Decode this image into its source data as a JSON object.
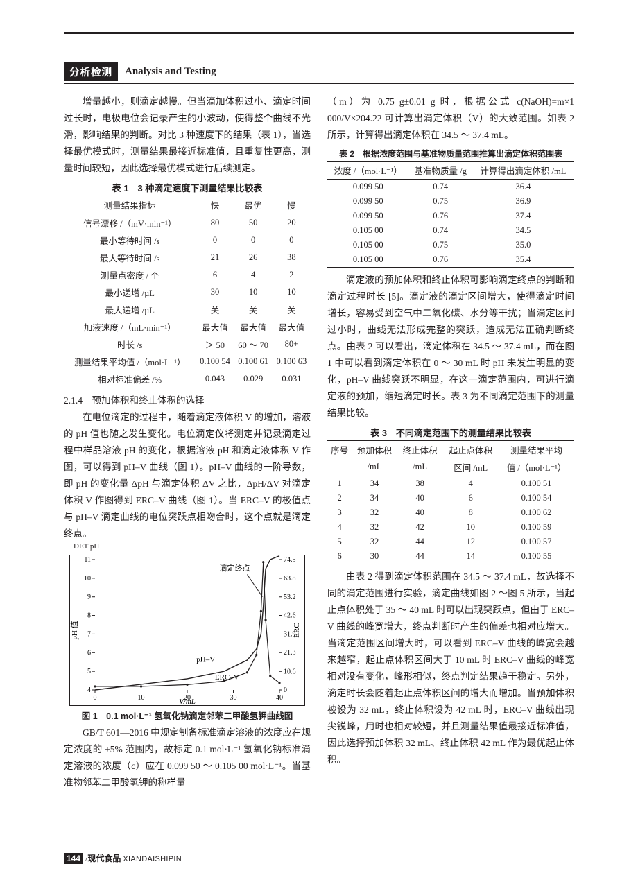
{
  "header": {
    "tag_zh": "分析检测",
    "tag_en": "Analysis and Testing"
  },
  "left": {
    "p1": "增量越小，则滴定越慢。但当滴加体积过小、滴定时间过长时，电极电位会记录产生的小波动，使得整个曲线不光滑，影响结果的判断。对比 3 种速度下的结果（表 1），当选择最优模式时，测量结果最接近标准值，且重复性更高，测量时间较短，因此选择最优模式进行后续测定。",
    "table1": {
      "title": "表 1　3 种滴定速度下测量结果比较表",
      "headers": [
        "测量结果指标",
        "快",
        "最优",
        "慢"
      ],
      "rows": [
        [
          "信号漂移 /（mV·min⁻¹）",
          "80",
          "50",
          "20"
        ],
        [
          "最小等待时间 /s",
          "0",
          "0",
          "0"
        ],
        [
          "最大等待时间 /s",
          "21",
          "26",
          "38"
        ],
        [
          "测量点密度 / 个",
          "6",
          "4",
          "2"
        ],
        [
          "最小递增 /µL",
          "30",
          "10",
          "10"
        ],
        [
          "最大递增 /µL",
          "关",
          "关",
          "关"
        ],
        [
          "加液速度 /（mL·min⁻¹）",
          "最大值",
          "最大值",
          "最大值"
        ],
        [
          "时长 /s",
          "＞ 50",
          "60 ～ 70",
          "80+"
        ],
        [
          "测量结果平均值 /（mol·L⁻¹）",
          "0.100 54",
          "0.100 61",
          "0.100 63"
        ],
        [
          "相对标准偏差 /%",
          "0.043",
          "0.029",
          "0.031"
        ]
      ]
    },
    "sec_214": "2.1.4　预加体积和终止体积的选择",
    "p2a": "在电位滴定的过程中，随着滴定液体积 V 的增加，溶液的 pH 值也随之发生变化。电位滴定仪将测定并记录滴定过程中样品溶液 pH 的变化，根据溶液 pH 和滴定液体积 V 作图，可以得到 pH–V 曲线（图 1）。pH–V 曲线的一阶导数，即 pH 的变化量 ΔpH 与滴定体积 ΔV 之比，ΔpH/ΔV 对滴定体积 V 作图得到 ERC–V 曲线（图 1）。当 ERC–V 的极值点与 pH–V 滴定曲线的电位突跃点相吻合时，这个点就是滴定终点。",
    "fig1": {
      "title_top": "DET pH",
      "y_left_label": "pH 值",
      "y_right_label": "ERC",
      "x_label": "V/mL",
      "x_ticks": [
        "0",
        "10",
        "20",
        "30",
        "40"
      ],
      "y_left_ticks": [
        "11",
        "10",
        "9",
        "8",
        "7",
        "6",
        "5",
        "4"
      ],
      "y_right_ticks": [
        "74.5",
        "63.8",
        "53.2",
        "42.6",
        "31.9",
        "21.3",
        "10.6",
        "0"
      ],
      "label_phv": "pH–V",
      "label_ercv": "ERC–V",
      "label_endpoint": "滴定终点",
      "ph_points": [
        [
          0,
          4.0
        ],
        [
          10,
          4.3
        ],
        [
          20,
          4.6
        ],
        [
          28,
          5.0
        ],
        [
          33,
          5.6
        ],
        [
          35,
          6.2
        ],
        [
          36,
          7.0
        ],
        [
          36.5,
          8.5
        ],
        [
          37,
          10.5
        ],
        [
          38,
          11.0
        ],
        [
          40,
          11.2
        ]
      ],
      "erc_points": [
        [
          0,
          2
        ],
        [
          10,
          2
        ],
        [
          20,
          3
        ],
        [
          28,
          5
        ],
        [
          33,
          10
        ],
        [
          35,
          20
        ],
        [
          36,
          45
        ],
        [
          36.5,
          73
        ],
        [
          37,
          40
        ],
        [
          38,
          8
        ],
        [
          40,
          4
        ]
      ],
      "line_color": "#231f20",
      "bg": "#ffffff",
      "caption": "图 1　0.1 mol·L⁻¹ 氢氧化钠滴定邻苯二甲酸氢钾曲线图"
    },
    "p3": "GB/T 601—2016 中规定制备标准滴定溶液的浓度应在规定浓度的 ±5% 范围内，故标定 0.1 mol·L⁻¹ 氢氧化钠标准滴定溶液的浓度（c）应在 0.099 50 ～ 0.105 00 mol·L⁻¹。当基准物邻苯二甲酸氢钾的称样量"
  },
  "right": {
    "p1": "（m）为 0.75 g±0.01 g 时，根据公式 c(NaOH)=m×1 000/V×204.22 可计算出滴定体积（V）的大致范围。如表 2 所示，计算得出滴定体积在 34.5 ～ 37.4 mL。",
    "table2": {
      "title": "表 2　根据浓度范围与基准物质量范围推算出滴定体积范围表",
      "headers": [
        "浓度 /（mol·L⁻¹）",
        "基准物质量 /g",
        "计算得出滴定体积 /mL"
      ],
      "rows": [
        [
          "0.099 50",
          "0.74",
          "36.4"
        ],
        [
          "0.099 50",
          "0.75",
          "36.9"
        ],
        [
          "0.099 50",
          "0.76",
          "37.4"
        ],
        [
          "0.105 00",
          "0.74",
          "34.5"
        ],
        [
          "0.105 00",
          "0.75",
          "35.0"
        ],
        [
          "0.105 00",
          "0.76",
          "35.4"
        ]
      ]
    },
    "p2": "滴定液的预加体积和终止体积可影响滴定终点的判断和滴定过程时长 [5]。滴定液的滴定区间增大，使得滴定时间增长，容易受到空气中二氧化碳、水分等干扰；当滴定区间过小时，曲线无法形成完整的突跃，造成无法正确判断终点。由表 2 可以看出，滴定体积在 34.5 ～ 37.4 mL，而在图 1 中可以看到滴定体积在 0 ～ 30 mL 时 pH 未发生明显的变化，pH–V 曲线突跃不明显，在这一滴定范围内，可进行滴定液的预加，缩短滴定时长。表 3 为不同滴定范围下的测量结果比较。",
    "table3": {
      "title": "表 3　不同滴定范围下的测量结果比较表",
      "headers_row1": [
        "序号",
        "预加体积",
        "终止体积",
        "起止点体积",
        "测量结果平均"
      ],
      "headers_row2": [
        "",
        "/mL",
        "/mL",
        "区间 /mL",
        "值 /（mol·L⁻¹）"
      ],
      "rows": [
        [
          "1",
          "34",
          "38",
          "4",
          "0.100 51"
        ],
        [
          "2",
          "34",
          "40",
          "6",
          "0.100 54"
        ],
        [
          "3",
          "32",
          "40",
          "8",
          "0.100 62"
        ],
        [
          "4",
          "32",
          "42",
          "10",
          "0.100 59"
        ],
        [
          "5",
          "32",
          "44",
          "12",
          "0.100 57"
        ],
        [
          "6",
          "30",
          "44",
          "14",
          "0.100 55"
        ]
      ]
    },
    "p3": "由表 2 得到滴定体积范围在 34.5 ～ 37.4 mL，故选择不同的滴定范围进行实验，滴定曲线如图 2 ～图 5 所示，当起止点体积处于 35 ～ 40 mL 时可以出现突跃点，但由于 ERC–V 曲线的峰宽增大，终点判断时产生的偏差也相对应增大。当滴定范围区间增大时，可以看到 ERC–V 曲线的峰宽会越来越窄，起止点体积区间大于 10 mL 时 ERC–V 曲线的峰宽相对没有变化，峰形相似，终点判定结果趋于稳定。另外，滴定时长会随着起止点体积区间的增大而增加。当预加体积被设为 32 mL，终止体积设为 42 mL 时，ERC–V 曲线出现尖锐峰，用时也相对较短，并且测量结果值最接近标准值，因此选择预加体积 32 mL、终止体积 42 mL 作为最优起止体积。"
  },
  "footer": {
    "page": "144",
    "zh": "现代食品",
    "py": "XIANDAISHIPIN"
  }
}
